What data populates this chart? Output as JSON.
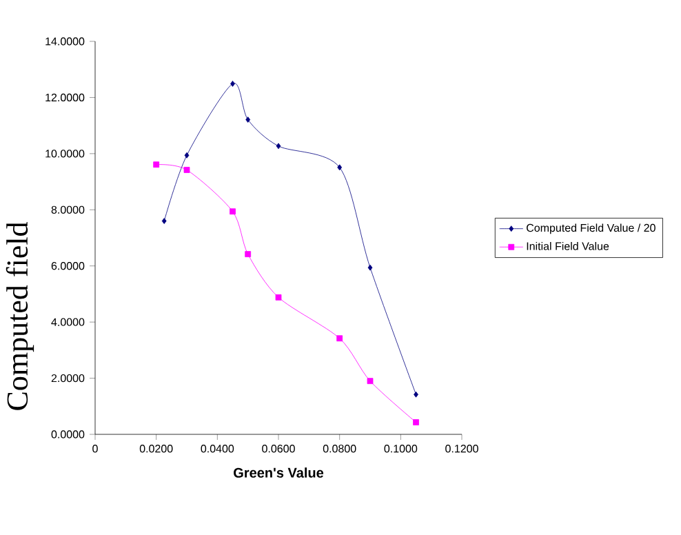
{
  "chart_data": {
    "type": "line",
    "xlabel": "Green's Value",
    "ylabel": "Computed field",
    "series": [
      {
        "name": "Computed Field Value / 20",
        "color": "#000080",
        "marker": "diamond",
        "x": [
          0.0226,
          0.03,
          0.045,
          0.05,
          0.06,
          0.08,
          0.09,
          0.105
        ],
        "values": [
          7.6,
          9.94,
          12.49,
          11.21,
          10.27,
          9.51,
          5.94,
          1.42
        ]
      },
      {
        "name": "Initial Field Value",
        "color": "#ff00ff",
        "marker": "square",
        "x": [
          0.02,
          0.03,
          0.045,
          0.05,
          0.06,
          0.08,
          0.09,
          0.105
        ],
        "values": [
          9.61,
          9.42,
          7.94,
          6.42,
          4.88,
          3.42,
          1.9,
          0.43
        ]
      }
    ],
    "xlim": [
      0,
      0.12
    ],
    "xticks": [
      {
        "value": 0,
        "label": "0"
      },
      {
        "value": 0.02,
        "label": "0.0200"
      },
      {
        "value": 0.04,
        "label": "0.0400"
      },
      {
        "value": 0.06,
        "label": "0.0600"
      },
      {
        "value": 0.08,
        "label": "0.0800"
      },
      {
        "value": 0.1,
        "label": "0.1000"
      },
      {
        "value": 0.12,
        "label": "0.1200"
      }
    ],
    "ylim": [
      0,
      14
    ],
    "yticks": [
      {
        "value": 0,
        "label": "0.0000"
      },
      {
        "value": 2,
        "label": "2.0000"
      },
      {
        "value": 4,
        "label": "4.0000"
      },
      {
        "value": 6,
        "label": "6.0000"
      },
      {
        "value": 8,
        "label": "8.0000"
      },
      {
        "value": 10,
        "label": "10.0000"
      },
      {
        "value": 12,
        "label": "12.0000"
      },
      {
        "value": 14,
        "label": "14.0000"
      }
    ],
    "grid": false,
    "legend": "right",
    "line_style": "solid"
  }
}
